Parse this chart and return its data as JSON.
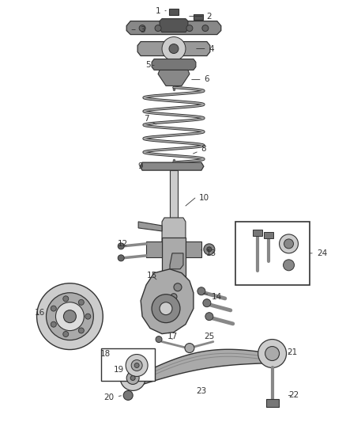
{
  "background_color": "#ffffff",
  "line_color": "#333333",
  "part_fill": "#c8c8c8",
  "dark_fill": "#555555",
  "fig_width": 4.38,
  "fig_height": 5.33,
  "dpi": 100
}
